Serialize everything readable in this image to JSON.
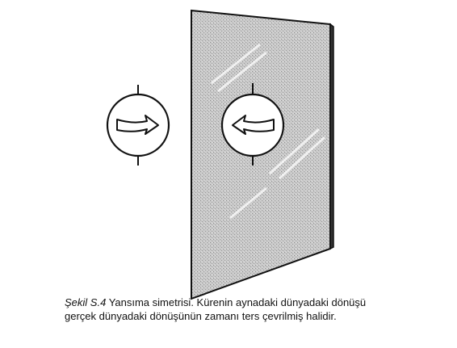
{
  "figure": {
    "colors": {
      "ink": "#111111",
      "mirror_texture": "#bdbdbd",
      "background": "#ffffff"
    },
    "real_sphere": {
      "icon": "right-arrow-icon",
      "rotation": "right"
    },
    "reflected_sphere": {
      "icon": "left-arrow-icon",
      "rotation": "left"
    }
  },
  "caption": {
    "label": "Şekil S.4",
    "line1": "Yansıma simetrisi. Kürenin aynadaki dünyadaki dönüşü",
    "line2": "gerçek dünyadaki dönüşünün zamanı ters çevrilmiş halidir."
  }
}
